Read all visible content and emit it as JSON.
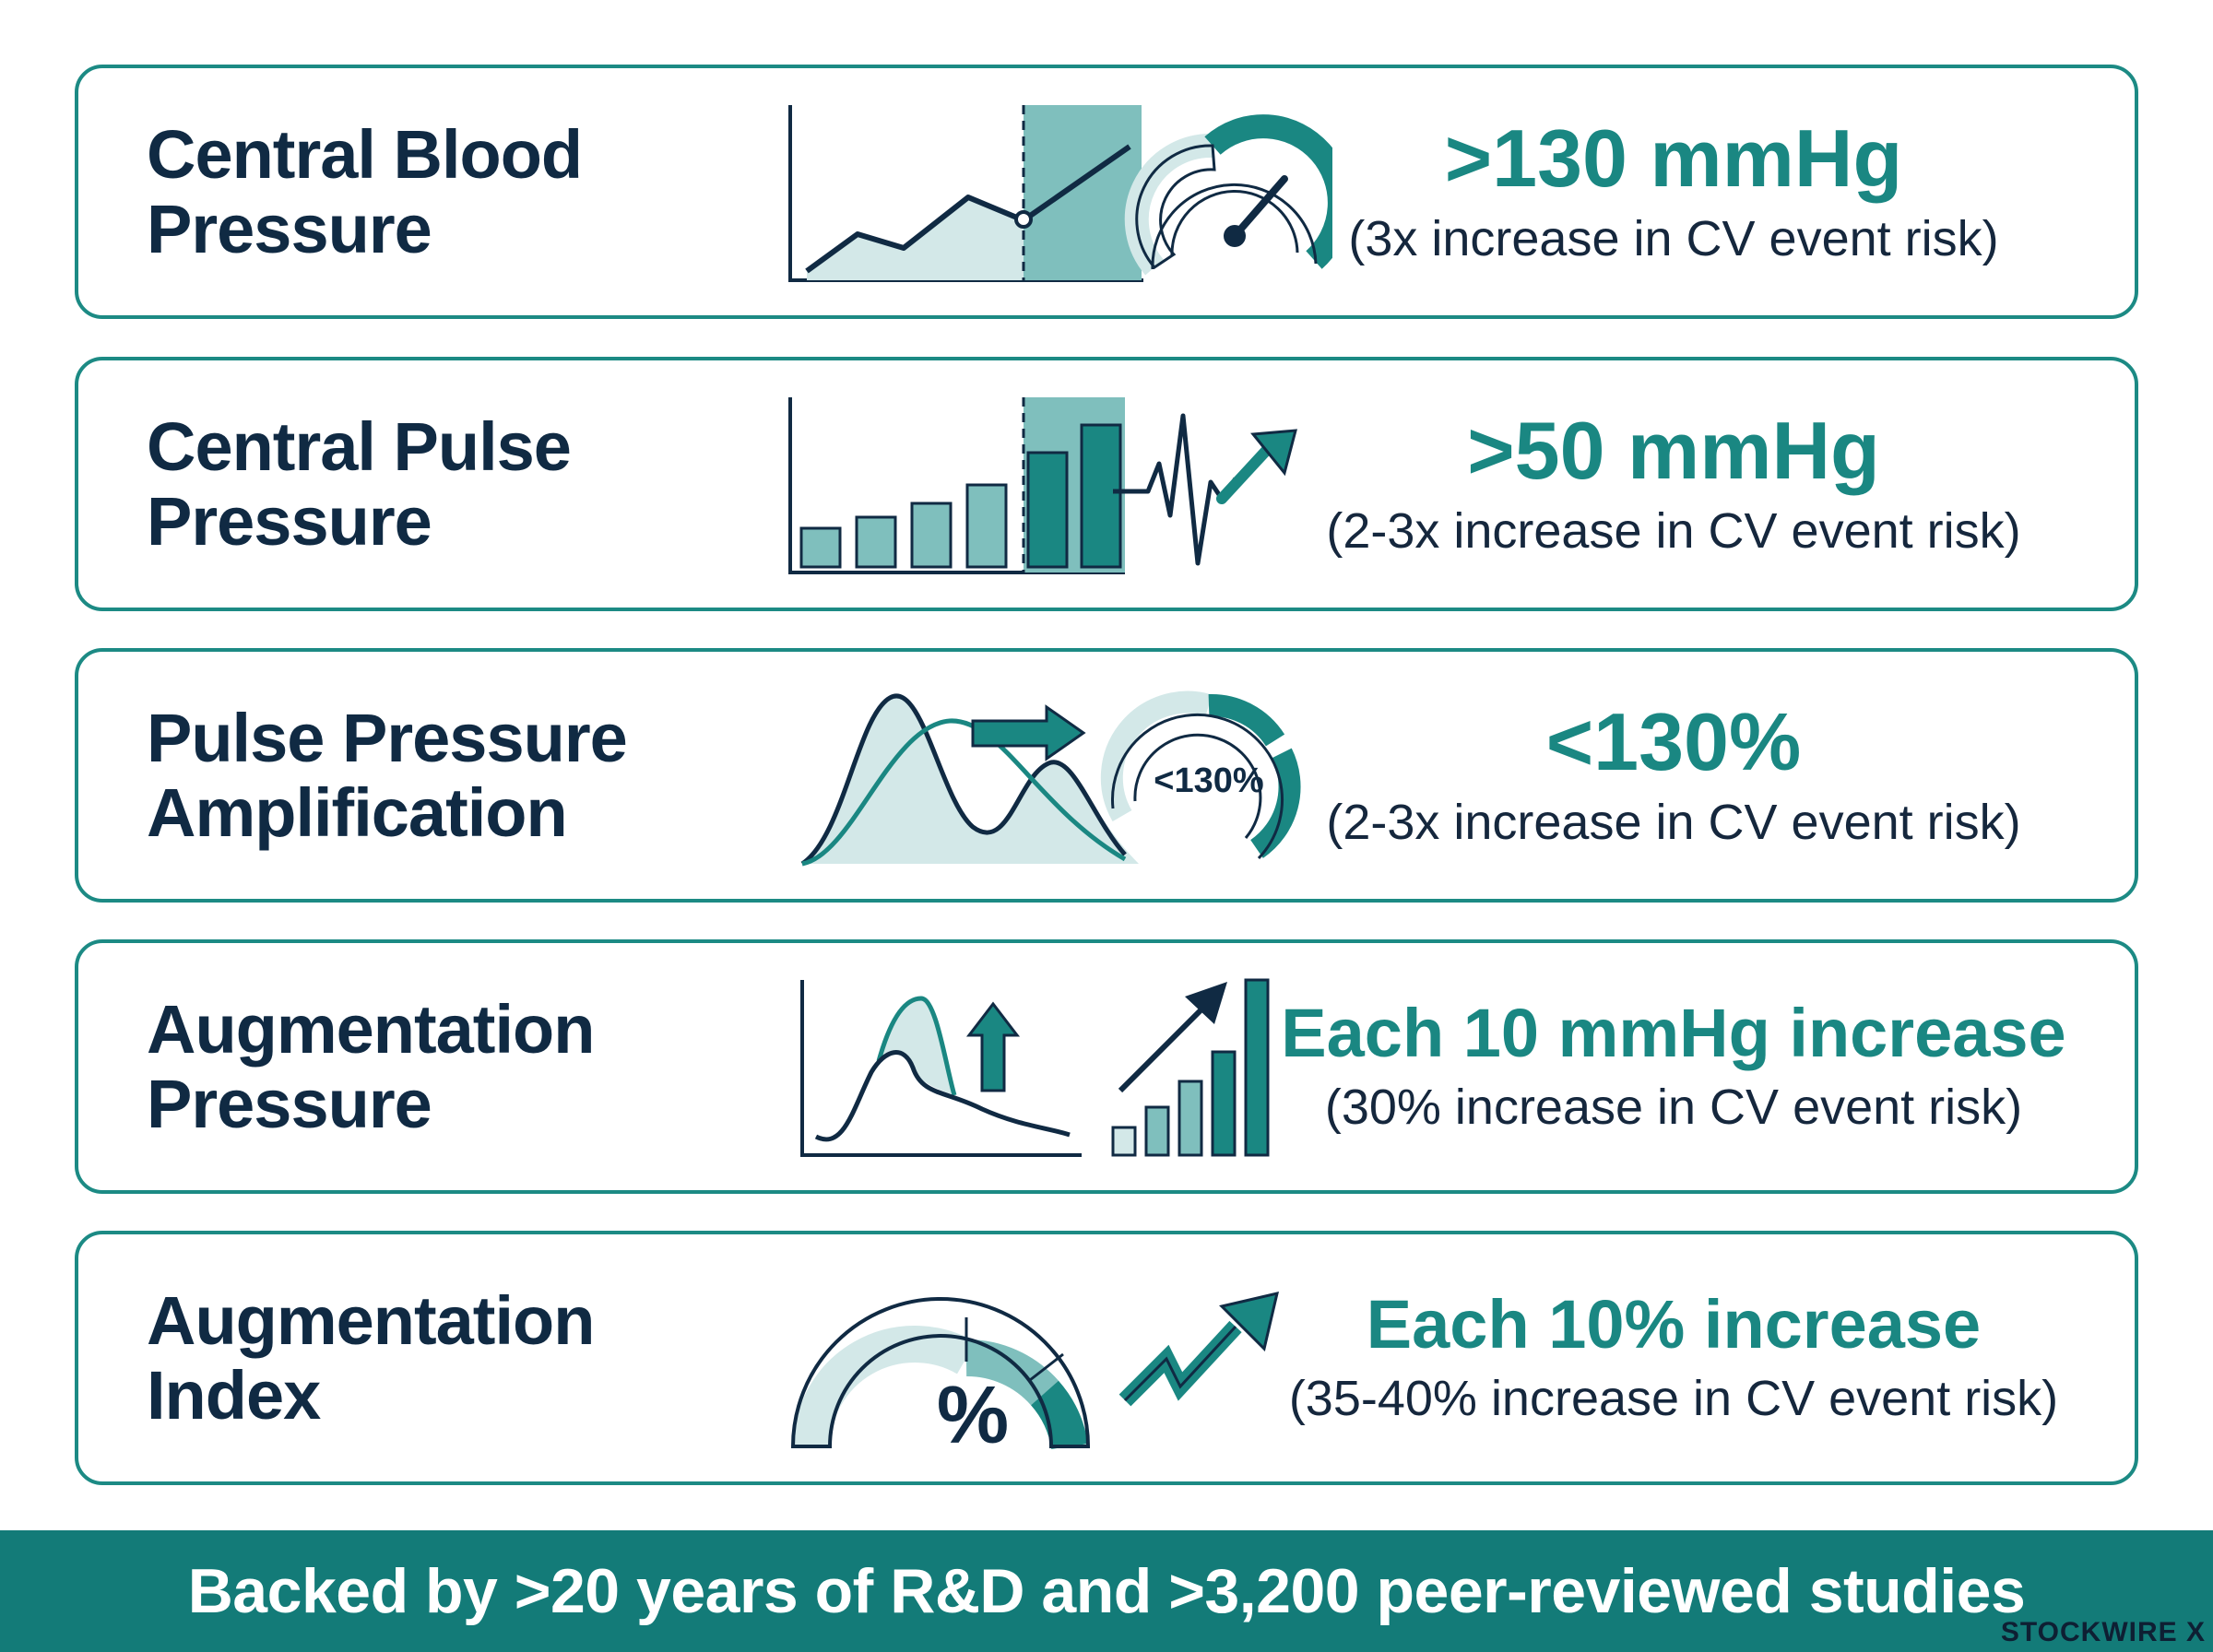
{
  "colors": {
    "teal": "#1a8782",
    "teal_dark": "#137b78",
    "teal_light": "#cfe6e6",
    "navy": "#102a43",
    "border": "#1c8a84"
  },
  "cards": [
    {
      "title_line1": "Central Blood",
      "title_line2": "Pressure",
      "icon": "line-chart-with-gauge-icon",
      "value": ">130 mmHg",
      "detail": "(3x increase in CV event risk)"
    },
    {
      "title_line1": "Central Pulse",
      "title_line2": "Pressure",
      "icon": "bar-chart-with-heartbeat-arrow-icon",
      "value": ">50 mmHg",
      "detail": "(2-3x increase in CV event risk)"
    },
    {
      "title_line1": "Pulse Pressure",
      "title_line2": "Amplification",
      "icon": "waveform-shift-with-gauge-icon",
      "gauge_label": "<130%",
      "value": "<130%",
      "detail": "(2-3x increase in CV event risk)"
    },
    {
      "title_line1": "Augmentation",
      "title_line2": "Pressure",
      "icon": "waveform-peak-with-rising-bars-icon",
      "value": "Each 10 mmHg increase",
      "detail": "(30% increase in CV event risk)"
    },
    {
      "title_line1": "Augmentation",
      "title_line2": "Index",
      "icon": "percent-gauge-with-trend-arrow-icon",
      "gauge_label": "%",
      "value": "Each 10% increase",
      "detail": "(35-40% increase in CV event risk)"
    }
  ],
  "footer": {
    "text": "Backed by >20 years of R&D and >3,200 peer-reviewed studies"
  },
  "watermark": "STOCKWIRE X"
}
